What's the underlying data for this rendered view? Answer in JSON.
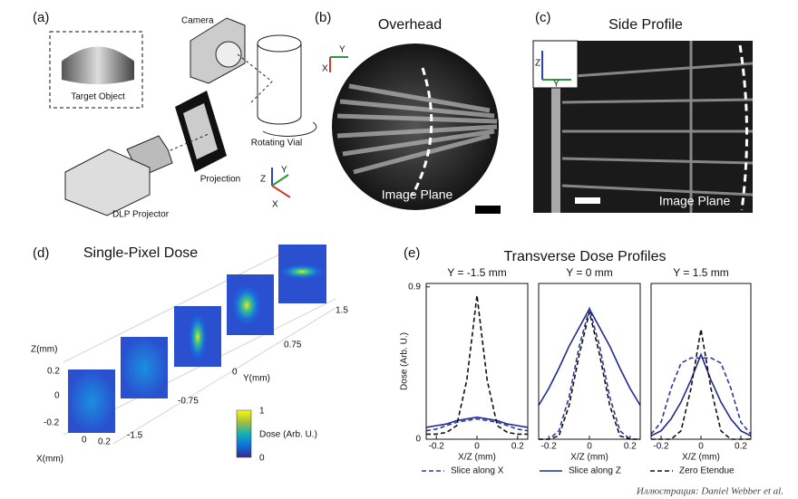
{
  "panel_a": {
    "label": "(a)",
    "camera": "Camera",
    "target": "Target Object",
    "vial": "Rotating Vial",
    "projection": "Projection",
    "projector": "DLP Projector",
    "axis_z": "Z",
    "axis_y": "Y",
    "axis_x": "X"
  },
  "panel_b": {
    "label": "(b)",
    "title": "Overhead",
    "plane": "Image Plane",
    "axis_x": "X",
    "axis_y": "Y"
  },
  "panel_c": {
    "label": "(c)",
    "title": "Side Profile",
    "plane": "Image Plane",
    "axis_z": "Z",
    "axis_y": "Y"
  },
  "panel_d": {
    "label": "(d)",
    "title": "Single-Pixel Dose",
    "z_label": "Z(mm)",
    "z_ticks": [
      "0.2",
      "0",
      "-0.2"
    ],
    "x_label": "X(mm)",
    "x_ticks": [
      "0",
      "0.2"
    ],
    "y_label": "Y(mm)",
    "y_ticks": [
      "-1.5",
      "-0.75",
      "0",
      "0.75",
      "1.5"
    ],
    "colorbar_label": "Dose (Arb. U.)",
    "colorbar_ticks": [
      "1",
      "0"
    ]
  },
  "panel_e": {
    "label": "(e)",
    "title": "Transverse Dose Profiles"
  },
  "chart_data": [
    {
      "type": "line",
      "title": "Y = -1.5 mm",
      "xlabel": "X/Z (mm)",
      "ylabel": "Dose (Arb. U.)",
      "x": [
        -0.25,
        -0.2,
        -0.15,
        -0.1,
        -0.05,
        0,
        0.05,
        0.1,
        0.15,
        0.2,
        0.25
      ],
      "xlim": [
        -0.25,
        0.25
      ],
      "xticks": [
        -0.2,
        0,
        0.2
      ],
      "ylim": [
        0,
        0.92
      ],
      "yticks": [
        0,
        0.9
      ],
      "series": [
        {
          "name": "Slice along X",
          "color": "#2b3a9e",
          "dash": true,
          "values": [
            0.05,
            0.06,
            0.08,
            0.1,
            0.11,
            0.12,
            0.11,
            0.1,
            0.08,
            0.06,
            0.05
          ]
        },
        {
          "name": "Slice along Z",
          "color": "#1e2a8f",
          "dash": false,
          "values": [
            0.07,
            0.08,
            0.09,
            0.11,
            0.12,
            0.13,
            0.12,
            0.11,
            0.09,
            0.08,
            0.07
          ]
        },
        {
          "name": "Zero Etendue",
          "color": "#111111",
          "dash": true,
          "values": [
            0.03,
            0.03,
            0.04,
            0.08,
            0.35,
            0.85,
            0.35,
            0.08,
            0.04,
            0.03,
            0.03
          ]
        }
      ]
    },
    {
      "type": "line",
      "title": "Y = 0 mm",
      "xlabel": "X/Z (mm)",
      "x": [
        -0.25,
        -0.2,
        -0.15,
        -0.1,
        -0.05,
        0,
        0.05,
        0.1,
        0.15,
        0.2,
        0.25
      ],
      "xlim": [
        -0.25,
        0.25
      ],
      "xticks": [
        -0.2,
        0,
        0.2
      ],
      "ylim": [
        0,
        0.92
      ],
      "series": [
        {
          "name": "Slice along X",
          "color": "#2b3a9e",
          "dash": true,
          "values": [
            0,
            0,
            0.05,
            0.25,
            0.55,
            0.77,
            0.55,
            0.25,
            0.05,
            0,
            0
          ]
        },
        {
          "name": "Slice along Z",
          "color": "#1e2a8f",
          "dash": false,
          "values": [
            0.2,
            0.3,
            0.42,
            0.55,
            0.66,
            0.77,
            0.66,
            0.55,
            0.42,
            0.3,
            0.2
          ]
        },
        {
          "name": "Zero Etendue",
          "color": "#111111",
          "dash": true,
          "values": [
            0,
            0,
            0.02,
            0.2,
            0.5,
            0.75,
            0.5,
            0.2,
            0.02,
            0,
            0
          ]
        }
      ]
    },
    {
      "type": "line",
      "title": "Y = 1.5 mm",
      "xlabel": "X/Z (mm)",
      "x": [
        -0.25,
        -0.2,
        -0.15,
        -0.1,
        -0.05,
        0,
        0.05,
        0.1,
        0.15,
        0.2,
        0.25
      ],
      "xlim": [
        -0.25,
        0.25
      ],
      "xticks": [
        -0.2,
        0,
        0.2
      ],
      "ylim": [
        0,
        0.92
      ],
      "series": [
        {
          "name": "Slice along X",
          "color": "#2b3a9e",
          "dash": true,
          "values": [
            0.03,
            0.1,
            0.3,
            0.45,
            0.48,
            0.48,
            0.48,
            0.45,
            0.3,
            0.1,
            0.03
          ]
        },
        {
          "name": "Slice along Z",
          "color": "#1e2a8f",
          "dash": false,
          "values": [
            0.02,
            0.05,
            0.12,
            0.22,
            0.35,
            0.5,
            0.35,
            0.22,
            0.12,
            0.05,
            0.02
          ]
        },
        {
          "name": "Zero Etendue",
          "color": "#111111",
          "dash": true,
          "values": [
            0,
            0,
            0,
            0.05,
            0.3,
            0.65,
            0.3,
            0.05,
            0,
            0,
            0
          ]
        }
      ]
    }
  ],
  "credit": "Иллюстрация: Daniel Webber et al."
}
